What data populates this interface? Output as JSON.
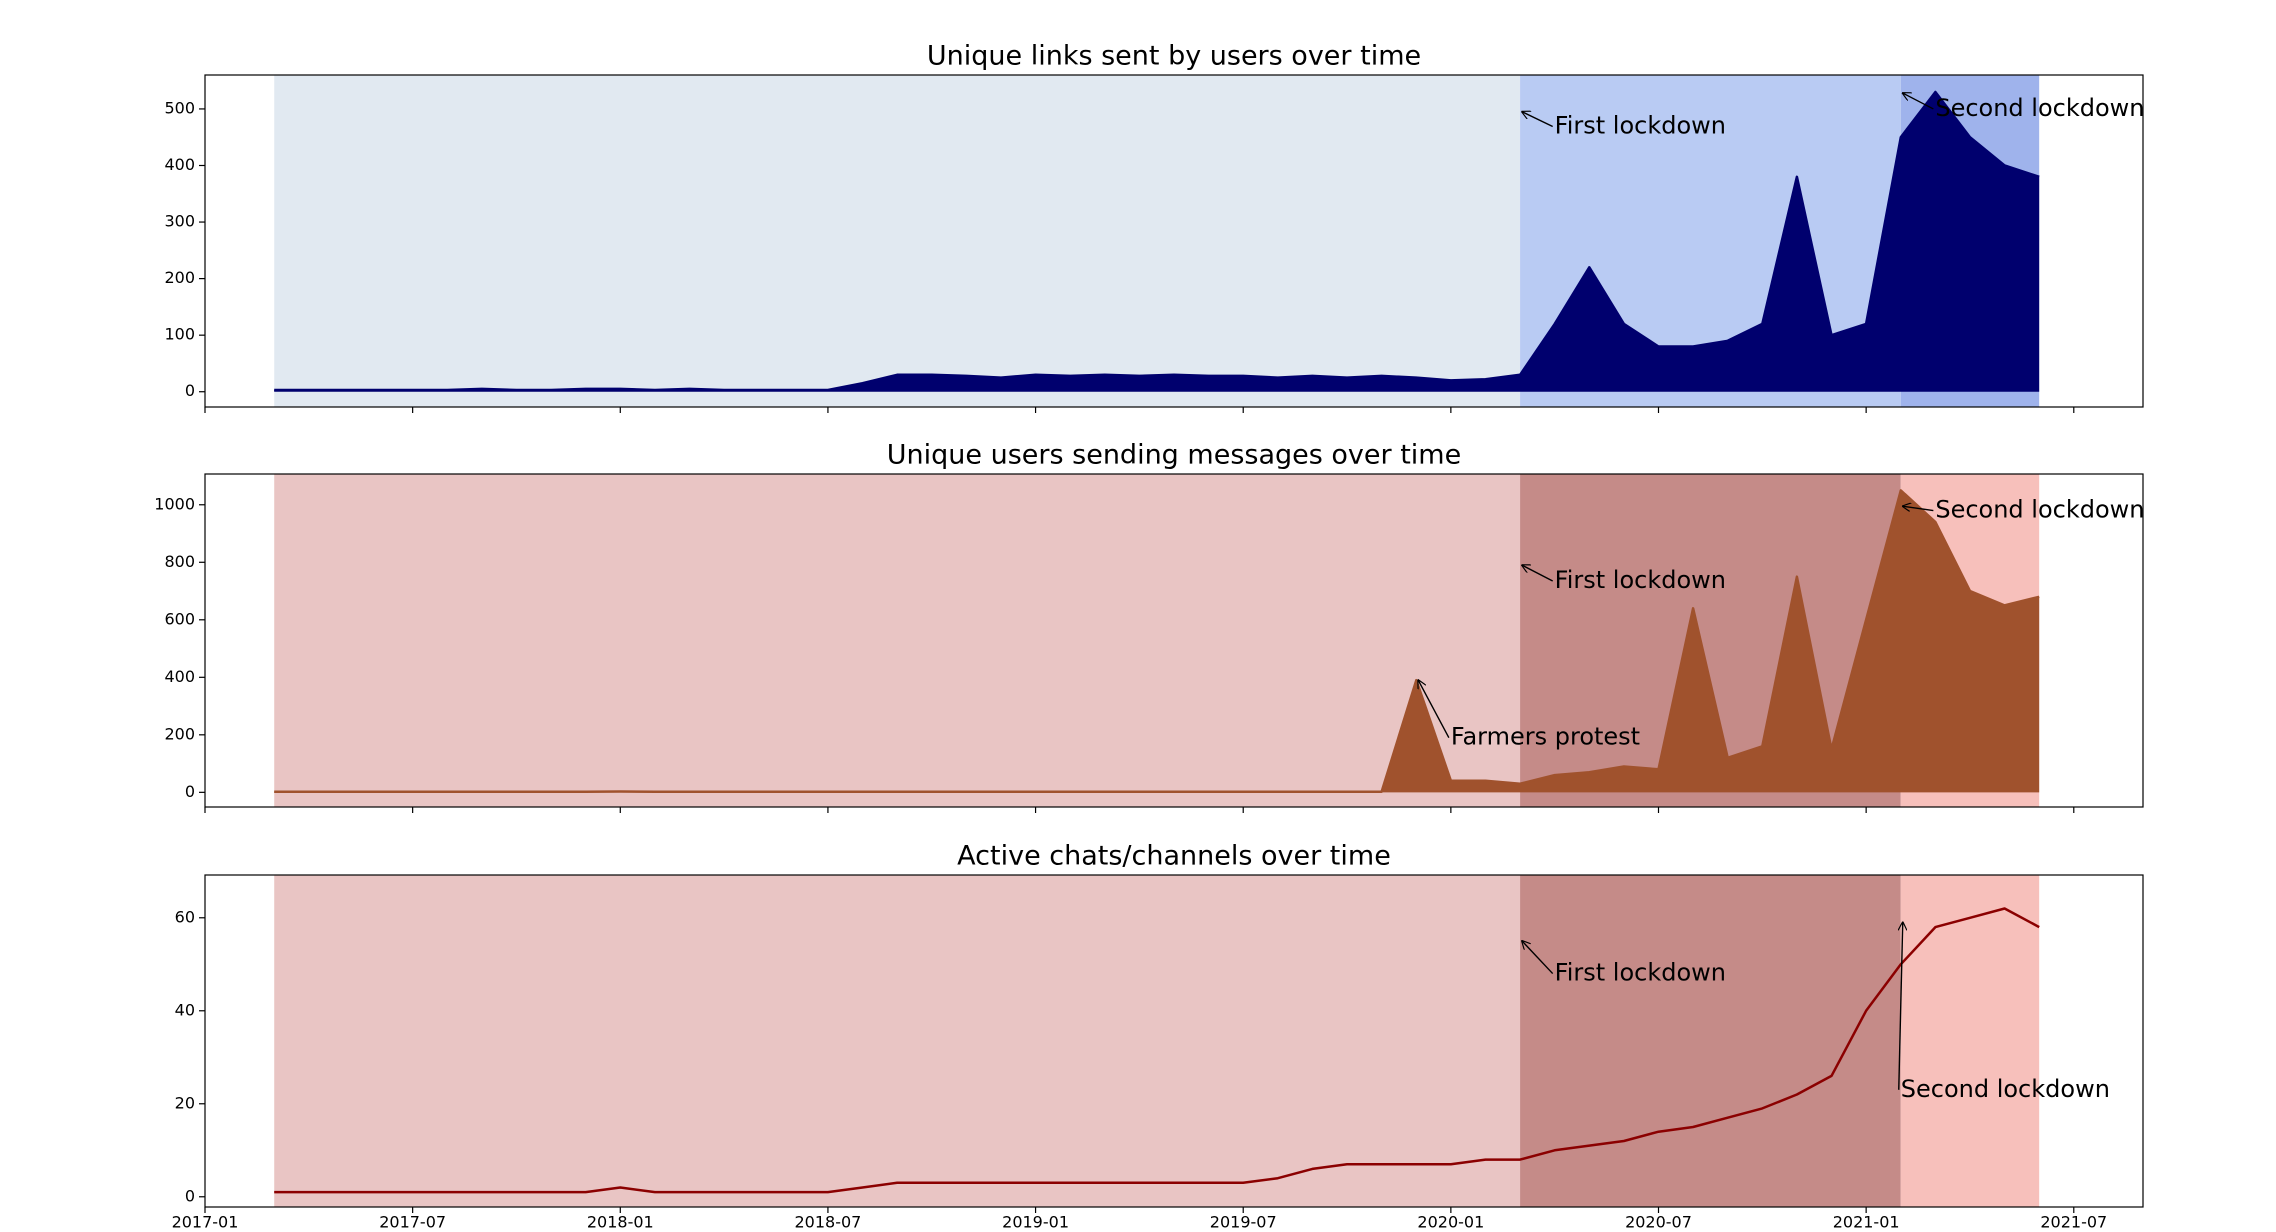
{
  "chart_data": [
    {
      "type": "line",
      "title": "Unique links sent by users over time",
      "color": "#00006e",
      "fill": true,
      "show_xticklabels": false,
      "xlim": [
        "2017-01",
        "2021-09"
      ],
      "xticks": [
        "2017-01",
        "2017-07",
        "2018-01",
        "2018-07",
        "2019-01",
        "2019-07",
        "2020-01",
        "2020-07",
        "2021-01",
        "2021-07"
      ],
      "ylim": [
        -27,
        560
      ],
      "yticks": [
        0,
        100,
        200,
        300,
        400,
        500
      ],
      "spans": [
        {
          "start": "2017-03",
          "end": "2020-03",
          "color": "#e1e9f1"
        },
        {
          "start": "2020-03",
          "end": "2021-02",
          "color": "#b9cbf3"
        },
        {
          "start": "2021-02",
          "end": "2021-06",
          "color": "#9fb3ec"
        }
      ],
      "x": [
        "2017-03",
        "2017-04",
        "2017-05",
        "2017-06",
        "2017-07",
        "2017-08",
        "2017-09",
        "2017-10",
        "2017-11",
        "2017-12",
        "2018-01",
        "2018-02",
        "2018-03",
        "2018-04",
        "2018-05",
        "2018-06",
        "2018-07",
        "2018-08",
        "2018-09",
        "2018-10",
        "2018-11",
        "2018-12",
        "2019-01",
        "2019-02",
        "2019-03",
        "2019-04",
        "2019-05",
        "2019-06",
        "2019-07",
        "2019-08",
        "2019-09",
        "2019-10",
        "2019-11",
        "2019-12",
        "2020-01",
        "2020-02",
        "2020-03",
        "2020-04",
        "2020-05",
        "2020-06",
        "2020-07",
        "2020-08",
        "2020-09",
        "2020-10",
        "2020-11",
        "2020-12",
        "2021-01",
        "2021-02",
        "2021-03",
        "2021-04",
        "2021-05",
        "2021-06"
      ],
      "values": [
        3,
        3,
        3,
        3,
        3,
        3,
        5,
        3,
        3,
        5,
        5,
        3,
        5,
        3,
        3,
        3,
        3,
        15,
        30,
        30,
        28,
        25,
        30,
        28,
        30,
        28,
        30,
        28,
        28,
        25,
        28,
        25,
        28,
        25,
        20,
        22,
        30,
        120,
        220,
        120,
        80,
        80,
        90,
        120,
        380,
        100,
        120,
        450,
        530,
        450,
        400,
        380
      ],
      "annotations": [
        {
          "text": "First lockdown",
          "x": "2020-03",
          "y": 495,
          "text_x": "2020-04",
          "text_y": 469
        },
        {
          "text": "Second lockdown",
          "x": "2021-02",
          "y": 528,
          "text_x": "2021-03",
          "text_y": 500
        }
      ]
    },
    {
      "type": "line",
      "title": "Unique users sending messages over time",
      "color": "#a0522d",
      "fill": true,
      "show_xticklabels": false,
      "xlim": [
        "2017-01",
        "2021-09"
      ],
      "xticks": [
        "2017-01",
        "2017-07",
        "2018-01",
        "2018-07",
        "2019-01",
        "2019-07",
        "2020-01",
        "2020-07",
        "2021-01",
        "2021-07"
      ],
      "ylim": [
        -51,
        1107
      ],
      "yticks": [
        0,
        200,
        400,
        600,
        800,
        1000
      ],
      "spans": [
        {
          "start": "2017-03",
          "end": "2020-03",
          "color": "#e9c5c4"
        },
        {
          "start": "2020-03",
          "end": "2021-02",
          "color": "#c58b88"
        },
        {
          "start": "2021-02",
          "end": "2021-06",
          "color": "#f7c0bb"
        }
      ],
      "x": [
        "2017-03",
        "2017-04",
        "2017-05",
        "2017-06",
        "2017-07",
        "2017-08",
        "2017-09",
        "2017-10",
        "2017-11",
        "2017-12",
        "2018-01",
        "2018-02",
        "2018-03",
        "2018-04",
        "2018-05",
        "2018-06",
        "2018-07",
        "2018-08",
        "2018-09",
        "2018-10",
        "2018-11",
        "2018-12",
        "2019-01",
        "2019-02",
        "2019-03",
        "2019-04",
        "2019-05",
        "2019-06",
        "2019-07",
        "2019-08",
        "2019-09",
        "2019-10",
        "2019-11",
        "2019-12",
        "2020-01",
        "2020-02",
        "2020-03",
        "2020-04",
        "2020-05",
        "2020-06",
        "2020-07",
        "2020-08",
        "2020-09",
        "2020-10",
        "2020-11",
        "2020-12",
        "2021-01",
        "2021-02",
        "2021-03",
        "2021-04",
        "2021-05",
        "2021-06"
      ],
      "values": [
        2,
        2,
        2,
        2,
        2,
        2,
        2,
        2,
        2,
        2,
        3,
        2,
        2,
        2,
        2,
        2,
        2,
        2,
        2,
        2,
        2,
        2,
        2,
        2,
        2,
        2,
        2,
        2,
        2,
        2,
        2,
        2,
        2,
        390,
        40,
        40,
        30,
        60,
        70,
        90,
        80,
        640,
        120,
        160,
        750,
        150,
        600,
        1050,
        940,
        700,
        650,
        680
      ],
      "annotations": [
        {
          "text": "First lockdown",
          "x": "2020-03",
          "y": 790,
          "text_x": "2020-04",
          "text_y": 735
        },
        {
          "text": "Second lockdown",
          "x": "2021-02",
          "y": 995,
          "text_x": "2021-03",
          "text_y": 980
        },
        {
          "text": "Farmers protest",
          "x": "2019-12",
          "y": 390,
          "text_x": "2020-01",
          "text_y": 190
        }
      ]
    },
    {
      "type": "line",
      "title": "Active chats/channels over time",
      "color": "#8b0000",
      "fill": false,
      "show_xticklabels": true,
      "xlim": [
        "2017-01",
        "2021-09"
      ],
      "xticks": [
        "2017-01",
        "2017-07",
        "2018-01",
        "2018-07",
        "2019-01",
        "2019-07",
        "2020-01",
        "2020-07",
        "2021-01",
        "2021-07"
      ],
      "ylim": [
        -2.2,
        69.2
      ],
      "yticks": [
        0,
        20,
        40,
        60
      ],
      "spans": [
        {
          "start": "2017-03",
          "end": "2020-03",
          "color": "#e9c5c4"
        },
        {
          "start": "2020-03",
          "end": "2021-02",
          "color": "#c58b88"
        },
        {
          "start": "2021-02",
          "end": "2021-06",
          "color": "#f7c0bb"
        }
      ],
      "x": [
        "2017-03",
        "2017-04",
        "2017-05",
        "2017-06",
        "2017-07",
        "2017-08",
        "2017-09",
        "2017-10",
        "2017-11",
        "2017-12",
        "2018-01",
        "2018-02",
        "2018-03",
        "2018-04",
        "2018-05",
        "2018-06",
        "2018-07",
        "2018-08",
        "2018-09",
        "2018-10",
        "2018-11",
        "2018-12",
        "2019-01",
        "2019-02",
        "2019-03",
        "2019-04",
        "2019-05",
        "2019-06",
        "2019-07",
        "2019-08",
        "2019-09",
        "2019-10",
        "2019-11",
        "2019-12",
        "2020-01",
        "2020-02",
        "2020-03",
        "2020-04",
        "2020-05",
        "2020-06",
        "2020-07",
        "2020-08",
        "2020-09",
        "2020-10",
        "2020-11",
        "2020-12",
        "2021-01",
        "2021-02",
        "2021-03",
        "2021-04",
        "2021-05",
        "2021-06"
      ],
      "values": [
        1,
        1,
        1,
        1,
        1,
        1,
        1,
        1,
        1,
        1,
        2,
        1,
        1,
        1,
        1,
        1,
        1,
        2,
        3,
        3,
        3,
        3,
        3,
        3,
        3,
        3,
        3,
        3,
        3,
        4,
        6,
        7,
        7,
        7,
        7,
        8,
        8,
        10,
        11,
        12,
        14,
        15,
        17,
        19,
        22,
        26,
        40,
        50,
        58,
        60,
        62,
        58
      ],
      "annotations": [
        {
          "text": "First lockdown",
          "x": "2020-03",
          "y": 55,
          "text_x": "2020-04",
          "text_y": 48
        },
        {
          "text": "Second lockdown",
          "x": "2021-02",
          "y": 59,
          "text_x": "2021-02",
          "text_y": 23
        }
      ]
    }
  ]
}
